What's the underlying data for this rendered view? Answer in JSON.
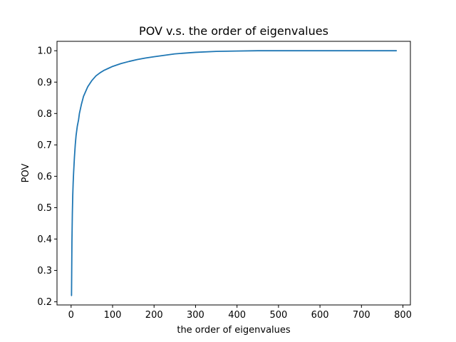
{
  "chart_data": {
    "type": "line",
    "title": "POV v.s. the order of eigenvalues",
    "xlabel": "the order of eigenvalues",
    "ylabel": "POV",
    "xlim": [
      -34,
      818
    ],
    "ylim": [
      0.19,
      1.03
    ],
    "xticks": [
      0,
      100,
      200,
      300,
      400,
      500,
      600,
      700,
      800
    ],
    "xtick_labels": [
      "0",
      "100",
      "200",
      "300",
      "400",
      "500",
      "600",
      "700",
      "800"
    ],
    "yticks": [
      0.2,
      0.3,
      0.4,
      0.5,
      0.6,
      0.7,
      0.8,
      0.9,
      1.0
    ],
    "ytick_labels": [
      "0.2",
      "0.3",
      "0.4",
      "0.5",
      "0.6",
      "0.7",
      "0.8",
      "0.9",
      "1.0"
    ],
    "grid": false,
    "legend": "none",
    "series": [
      {
        "color": "#1f77b4",
        "x": [
          1,
          2,
          3,
          4,
          5,
          6,
          8,
          10,
          12,
          15,
          18,
          20,
          25,
          30,
          35,
          40,
          50,
          60,
          70,
          80,
          90,
          100,
          120,
          140,
          160,
          180,
          200,
          250,
          300,
          350,
          400,
          450,
          500,
          600,
          700,
          784
        ],
        "y": [
          0.22,
          0.39,
          0.48,
          0.54,
          0.58,
          0.61,
          0.66,
          0.7,
          0.73,
          0.76,
          0.78,
          0.8,
          0.83,
          0.855,
          0.87,
          0.885,
          0.905,
          0.92,
          0.93,
          0.938,
          0.944,
          0.95,
          0.959,
          0.966,
          0.972,
          0.977,
          0.981,
          0.99,
          0.995,
          0.998,
          0.999,
          1.0,
          1.0,
          1.0,
          1.0,
          1.0
        ]
      }
    ]
  }
}
